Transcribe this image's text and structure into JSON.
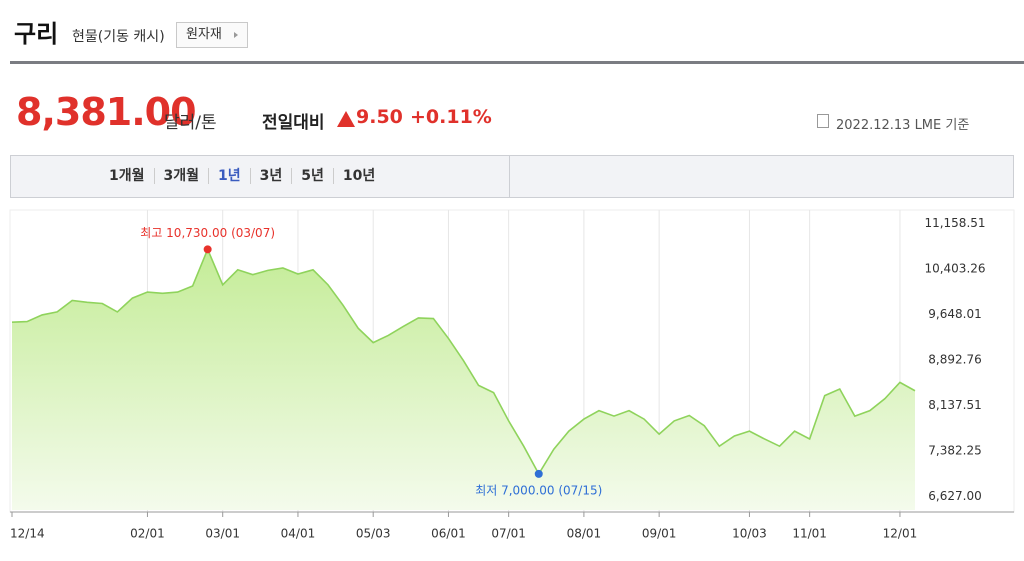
{
  "header": {
    "title": "구리",
    "subtitle": "현물(기동 캐시)",
    "button": "원자재"
  },
  "quote": {
    "price": "8,381.00",
    "unit": "달러/톤",
    "change_label": "전일대비",
    "change": "9.50",
    "change_percent": "+0.11%",
    "date": "2022.12.13 LME 기준"
  },
  "tabs": [
    "1개월",
    "3개월",
    "1년",
    "3년",
    "5년",
    "10년"
  ],
  "selected_tab": "1년",
  "chart_data": {
    "type": "area",
    "color": "#8fd35c",
    "grid": "x",
    "categories": [
      "12/14",
      null,
      null,
      null,
      null,
      null,
      null,
      null,
      null,
      "02/01",
      null,
      null,
      null,
      null,
      "03/01",
      null,
      null,
      null,
      null,
      "04/01",
      null,
      null,
      null,
      null,
      "05/03",
      null,
      null,
      null,
      null,
      "06/01",
      null,
      null,
      null,
      "07/01",
      null,
      null,
      null,
      null,
      "08/01",
      null,
      null,
      null,
      null,
      "09/01",
      null,
      null,
      null,
      null,
      null,
      "10/03",
      null,
      null,
      null,
      "11/01",
      null,
      null,
      null,
      null,
      null,
      "12/01",
      null
    ],
    "values": [
      9520,
      9530,
      9640,
      9690,
      9880,
      9850,
      9830,
      9690,
      9920,
      10020,
      10000,
      10020,
      10120,
      10730,
      10140,
      10390,
      10310,
      10380,
      10420,
      10320,
      10390,
      10140,
      9800,
      9420,
      9180,
      9300,
      9450,
      9590,
      9580,
      9250,
      8880,
      8470,
      8350,
      7880,
      7460,
      7000,
      7410,
      7710,
      7910,
      8050,
      7960,
      8050,
      7910,
      7660,
      7880,
      7970,
      7800,
      7460,
      7630,
      7710,
      7580,
      7460,
      7710,
      7580,
      8300,
      8410,
      7960,
      8050,
      8250,
      8520,
      8381
    ],
    "ylim": [
      6400,
      11350
    ],
    "yticks": [
      {
        "value": 11158.51,
        "label": "11,158.51"
      },
      {
        "value": 10403.26,
        "label": "10,403.26"
      },
      {
        "value": 9648.01,
        "label": "9,648.01"
      },
      {
        "value": 8892.76,
        "label": "8,892.76"
      },
      {
        "value": 8137.51,
        "label": "8,137.51"
      },
      {
        "value": 7382.25,
        "label": "7,382.25"
      },
      {
        "value": 6627.0,
        "label": "6,627.00"
      }
    ],
    "max_label": "최고 10,730.00 (03/07)",
    "max_color": "#e8322b",
    "min_label": "최저 7,000.00 (07/15)",
    "min_color": "#2f6fd6"
  }
}
